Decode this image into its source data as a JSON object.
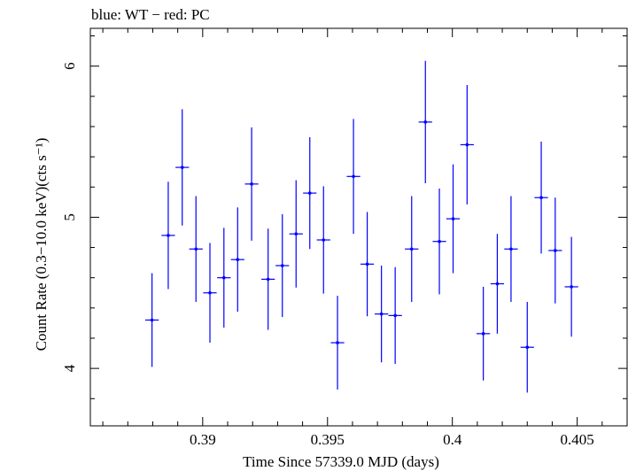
{
  "chart_data": {
    "type": "scatter",
    "title": "blue: WT − red: PC",
    "xlabel": "Time Since 57339.0 MJD (days)",
    "ylabel": "Count Rate (0.3−10.0 keV)(cts s⁻¹)",
    "xlim": [
      0.3855,
      0.407
    ],
    "ylim": [
      3.62,
      6.25
    ],
    "x_ticks": [
      {
        "value": 0.39,
        "label": "0.39"
      },
      {
        "value": 0.395,
        "label": "0.395"
      },
      {
        "value": 0.4,
        "label": "0.4"
      },
      {
        "value": 0.405,
        "label": "0.405"
      }
    ],
    "y_ticks": [
      {
        "value": 4,
        "label": "4"
      },
      {
        "value": 5,
        "label": "5"
      },
      {
        "value": 6,
        "label": "6"
      }
    ],
    "grid": false,
    "series": [
      {
        "name": "WT",
        "color": "#0000ff",
        "points": [
          {
            "x": 0.38797,
            "xerr": 0.00027,
            "y": 4.32,
            "yerr": 0.31
          },
          {
            "x": 0.38862,
            "xerr": 0.00027,
            "y": 4.88,
            "yerr": 0.355
          },
          {
            "x": 0.38918,
            "xerr": 0.00027,
            "y": 5.33,
            "yerr": 0.385
          },
          {
            "x": 0.38973,
            "xerr": 0.00027,
            "y": 4.79,
            "yerr": 0.35
          },
          {
            "x": 0.39029,
            "xerr": 0.00027,
            "y": 4.5,
            "yerr": 0.33
          },
          {
            "x": 0.39085,
            "xerr": 0.00027,
            "y": 4.6,
            "yerr": 0.33
          },
          {
            "x": 0.3914,
            "xerr": 0.00027,
            "y": 4.72,
            "yerr": 0.345
          },
          {
            "x": 0.39196,
            "xerr": 0.00027,
            "y": 5.22,
            "yerr": 0.375
          },
          {
            "x": 0.39262,
            "xerr": 0.00027,
            "y": 4.59,
            "yerr": 0.335
          },
          {
            "x": 0.39319,
            "xerr": 0.00027,
            "y": 4.68,
            "yerr": 0.34
          },
          {
            "x": 0.39374,
            "xerr": 0.00027,
            "y": 4.89,
            "yerr": 0.355
          },
          {
            "x": 0.39429,
            "xerr": 0.00027,
            "y": 5.16,
            "yerr": 0.37
          },
          {
            "x": 0.39484,
            "xerr": 0.00027,
            "y": 4.85,
            "yerr": 0.355
          },
          {
            "x": 0.3954,
            "xerr": 0.00027,
            "y": 4.17,
            "yerr": 0.31
          },
          {
            "x": 0.39604,
            "xerr": 0.00027,
            "y": 5.27,
            "yerr": 0.38
          },
          {
            "x": 0.39659,
            "xerr": 0.00027,
            "y": 4.69,
            "yerr": 0.345
          },
          {
            "x": 0.39716,
            "xerr": 0.00027,
            "y": 4.36,
            "yerr": 0.32
          },
          {
            "x": 0.39771,
            "xerr": 0.00027,
            "y": 4.35,
            "yerr": 0.32
          },
          {
            "x": 0.39837,
            "xerr": 0.00027,
            "y": 4.79,
            "yerr": 0.35
          },
          {
            "x": 0.39892,
            "xerr": 0.00027,
            "y": 5.63,
            "yerr": 0.405
          },
          {
            "x": 0.39948,
            "xerr": 0.00027,
            "y": 4.84,
            "yerr": 0.35
          },
          {
            "x": 0.40003,
            "xerr": 0.00027,
            "y": 4.99,
            "yerr": 0.36
          },
          {
            "x": 0.40059,
            "xerr": 0.00027,
            "y": 5.48,
            "yerr": 0.395
          },
          {
            "x": 0.40124,
            "xerr": 0.00027,
            "y": 4.23,
            "yerr": 0.31
          },
          {
            "x": 0.4018,
            "xerr": 0.00027,
            "y": 4.56,
            "yerr": 0.33
          },
          {
            "x": 0.40235,
            "xerr": 0.00027,
            "y": 4.79,
            "yerr": 0.35
          },
          {
            "x": 0.403,
            "xerr": 0.00027,
            "y": 4.14,
            "yerr": 0.3
          },
          {
            "x": 0.40356,
            "xerr": 0.00027,
            "y": 5.13,
            "yerr": 0.37
          },
          {
            "x": 0.40412,
            "xerr": 0.00027,
            "y": 4.78,
            "yerr": 0.35
          },
          {
            "x": 0.40477,
            "xerr": 0.00027,
            "y": 4.54,
            "yerr": 0.33
          }
        ]
      }
    ]
  }
}
